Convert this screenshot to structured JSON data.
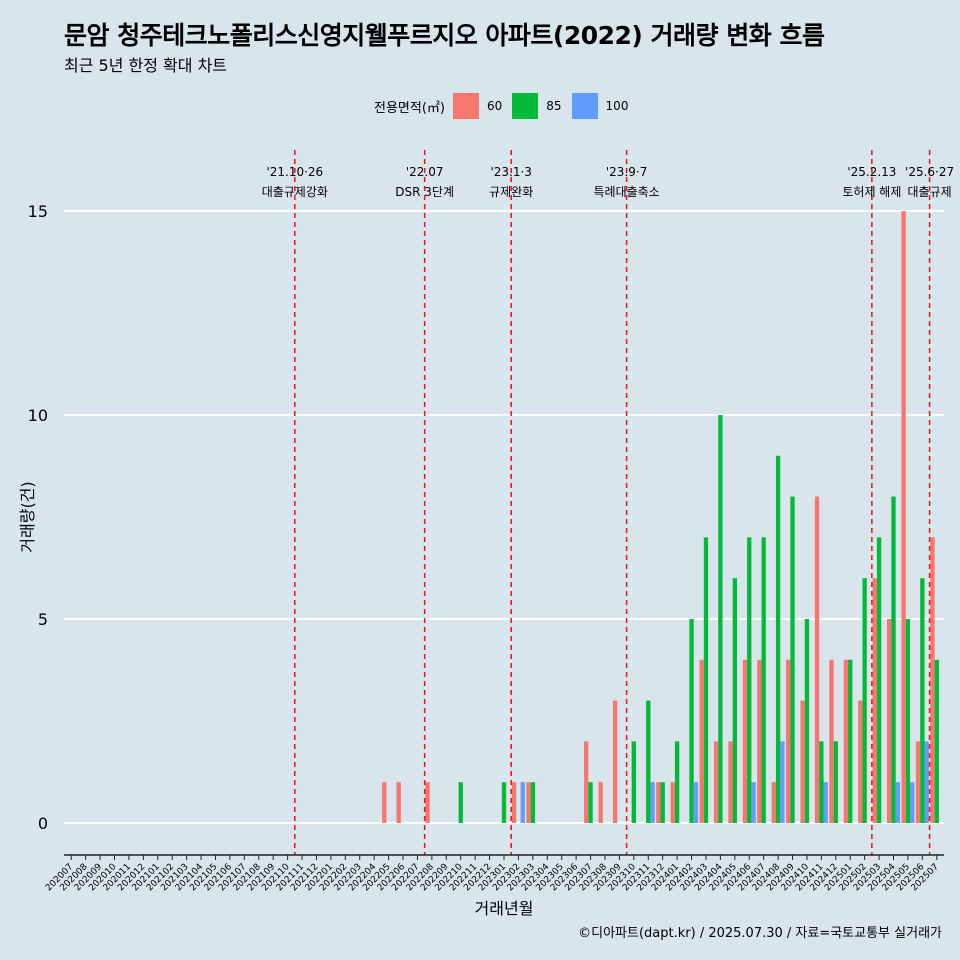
{
  "title": "문암 청주테크노폴리스신영지웰푸르지오 아파트(2022) 거래량 변화 흐름",
  "subtitle": "최근 5년 한정 확대 차트",
  "caption": "©디아파트(dapt.kr) / 2025.07.30 / 자료=국토교통부 실거래가",
  "legend": {
    "title": "전용면적(㎡)",
    "items": [
      {
        "label": "60",
        "color": "#f8766d"
      },
      {
        "label": "85",
        "color": "#00ba38"
      },
      {
        "label": "100",
        "color": "#619cff"
      }
    ]
  },
  "chart_data": {
    "type": "bar",
    "xlabel": "거래년월",
    "ylabel": "거래량(건)",
    "ylim": [
      0,
      15
    ],
    "yticks": [
      0,
      5,
      10,
      15
    ],
    "categories": [
      "202007",
      "202008",
      "202009",
      "202010",
      "202011",
      "202012",
      "202101",
      "202102",
      "202103",
      "202104",
      "202105",
      "202106",
      "202107",
      "202108",
      "202109",
      "202110",
      "202111",
      "202112",
      "202201",
      "202202",
      "202203",
      "202204",
      "202205",
      "202206",
      "202207",
      "202208",
      "202209",
      "202210",
      "202211",
      "202212",
      "202301",
      "202302",
      "202303",
      "202304",
      "202305",
      "202306",
      "202307",
      "202308",
      "202309",
      "202310",
      "202311",
      "202312",
      "202401",
      "202402",
      "202403",
      "202404",
      "202405",
      "202406",
      "202407",
      "202408",
      "202409",
      "202410",
      "202411",
      "202412",
      "202501",
      "202502",
      "202503",
      "202504",
      "202505",
      "202506",
      "202507"
    ],
    "series": [
      {
        "name": "60",
        "color": "#f8766d",
        "values": [
          0,
          0,
          0,
          0,
          0,
          0,
          0,
          0,
          0,
          0,
          0,
          0,
          0,
          0,
          0,
          0,
          0,
          0,
          0,
          0,
          0,
          0,
          1,
          1,
          0,
          1,
          0,
          0,
          0,
          0,
          0,
          1,
          1,
          0,
          0,
          0,
          2,
          1,
          3,
          0,
          0,
          1,
          1,
          0,
          4,
          2,
          2,
          4,
          4,
          1,
          4,
          3,
          8,
          4,
          4,
          3,
          6,
          5,
          15,
          2,
          7
        ]
      },
      {
        "name": "85",
        "color": "#00ba38",
        "values": [
          0,
          0,
          0,
          0,
          0,
          0,
          0,
          0,
          0,
          0,
          0,
          0,
          0,
          0,
          0,
          0,
          0,
          0,
          0,
          0,
          0,
          0,
          0,
          0,
          0,
          0,
          0,
          1,
          0,
          0,
          1,
          0,
          1,
          0,
          0,
          0,
          1,
          0,
          0,
          2,
          3,
          1,
          2,
          5,
          7,
          10,
          6,
          7,
          7,
          9,
          8,
          5,
          2,
          2,
          4,
          6,
          7,
          8,
          5,
          6,
          4
        ]
      },
      {
        "name": "100",
        "color": "#619cff",
        "values": [
          0,
          0,
          0,
          0,
          0,
          0,
          0,
          0,
          0,
          0,
          0,
          0,
          0,
          0,
          0,
          0,
          0,
          0,
          0,
          0,
          0,
          0,
          0,
          0,
          0,
          0,
          0,
          0,
          0,
          0,
          0,
          1,
          0,
          0,
          0,
          0,
          0,
          0,
          0,
          0,
          1,
          0,
          0,
          1,
          0,
          0,
          0,
          1,
          0,
          2,
          0,
          0,
          1,
          0,
          0,
          0,
          0,
          1,
          1,
          2,
          0
        ]
      }
    ],
    "annotations": [
      {
        "month": "202110",
        "date": "'21.10·26",
        "label": "대출규제강화"
      },
      {
        "month": "202207",
        "date": "'22.07",
        "label": "DSR 3단계"
      },
      {
        "month": "202301",
        "date": "'23.1·3",
        "label": "규제완화"
      },
      {
        "month": "202309",
        "date": "'23.9·7",
        "label": "특례대출축소"
      },
      {
        "month": "202502",
        "date": "'25.2.13",
        "label": "토허제 해제"
      },
      {
        "month": "202506",
        "date": "'25.6·27",
        "label": "대출규제"
      }
    ],
    "grid": true,
    "legend_position": "top"
  }
}
